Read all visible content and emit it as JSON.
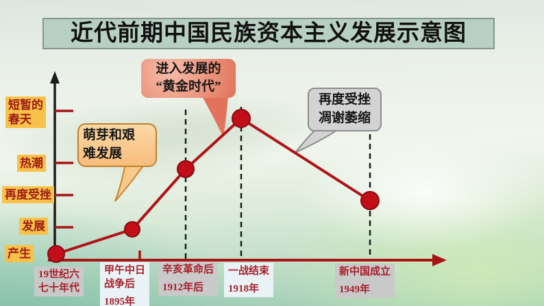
{
  "title_bar": {
    "text": "近代前期中国民族资本主义发展示意图"
  },
  "y_axis_labels": [
    {
      "lines": [
        "短暂的",
        "春天"
      ]
    },
    {
      "lines": [
        "热潮"
      ]
    },
    {
      "lines": [
        "再度受挫"
      ]
    },
    {
      "lines": [
        "发展"
      ]
    },
    {
      "lines": [
        "产生"
      ]
    }
  ],
  "x_axis_labels": [
    {
      "lines": [
        "19世纪六",
        "七十年代"
      ]
    },
    {
      "lines": [
        "甲午中日",
        "战争后"
      ],
      "year": "1895年"
    },
    {
      "lines": [
        "辛亥革命后"
      ],
      "year": "1912年后"
    },
    {
      "lines": [
        "一战结束"
      ],
      "year": "1918年"
    },
    {
      "lines": [
        "新中国成立"
      ],
      "year": "1949年"
    }
  ],
  "callouts": {
    "sprout": {
      "lines": [
        "萌芽和艰",
        "难发展"
      ]
    },
    "golden": {
      "lines": [
        "进入发展的",
        "“黄金时代”"
      ]
    },
    "setback": {
      "lines": [
        "再度受挫",
        "凋谢萎缩"
      ]
    }
  },
  "chart_data": {
    "type": "line",
    "title": "近代前期中国民族资本主义发展示意图",
    "x_categories": [
      "19世纪六七十年代",
      "甲午中日战争后 1895年",
      "辛亥革命后 1912年后",
      "一战结束 1918年",
      "新中国成立 1949年"
    ],
    "y_stages_bottom_to_top": [
      "产生",
      "发展",
      "再度受挫",
      "热潮",
      "短暂的春天"
    ],
    "points": [
      {
        "x": "19世纪六七十年代",
        "stage": "产生"
      },
      {
        "x": "甲午中日战争后 1895年",
        "stage": "发展"
      },
      {
        "x": "辛亥革命后 1912年后",
        "stage": "热潮"
      },
      {
        "x": "一战结束 1918年",
        "stage": "短暂的春天"
      },
      {
        "x": "新中国成立 1949年",
        "stage": "再度受挫"
      }
    ],
    "annotations": [
      {
        "text": "萌芽和艰难发展",
        "points_to": "甲午中日战争后 1895年"
      },
      {
        "text": "进入发展的“黄金时代”",
        "points_to": "一战结束 1918年"
      },
      {
        "text": "再度受挫 凋谢萎缩",
        "points_to": "新中国成立 1949年"
      }
    ],
    "legend": null,
    "grid": "dashed guides at 辛亥革命后 / 一战结束 / 新中国成立",
    "colors": {
      "line": "#b01218",
      "point_fill": "#c10e18",
      "point_stroke": "#870b10",
      "x_axis": "#a81414",
      "y_axis": "#1c1c1c",
      "tick": "#a81414",
      "dashed_guide": "#1a1a1a",
      "y_label_bg": "#f8c24a",
      "y_label_text": "#9e1a12",
      "x_label_text": "#a8202c",
      "title_bar_bg": "#b8cfc3"
    }
  }
}
